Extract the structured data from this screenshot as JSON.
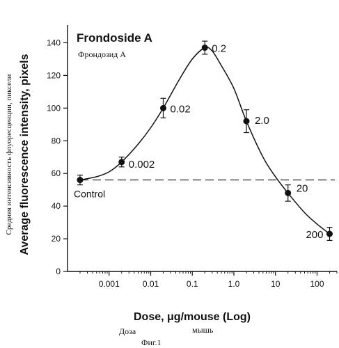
{
  "chart_data": {
    "type": "line",
    "title": "Frondoside A",
    "subtitle": "Фрондозид А",
    "xlabel": "Dose, μg/mouse (Log)",
    "xlabel_ru_1": "Доза",
    "xlabel_ru_2": "мышь",
    "ylabel": "Average fluorescence intensity, pixels",
    "ylabel_ru": "Средняя интенсивность флуоресценции, пиксели",
    "caption": "Фиг.1",
    "x_scale": "log",
    "xlim": [
      0.0001,
      300
    ],
    "ylim": [
      0,
      150
    ],
    "x_ticks": [
      0.001,
      0.01,
      0.1,
      1.0,
      10,
      100
    ],
    "x_tick_labels": [
      "0.001",
      "0.01",
      "0.1",
      "1.0",
      "10",
      "100"
    ],
    "y_ticks": [
      0,
      20,
      40,
      60,
      80,
      100,
      120,
      140
    ],
    "y_tick_labels": [
      "0",
      "20",
      "40",
      "60",
      "80",
      "100",
      "120",
      "140"
    ],
    "grid": false,
    "control": {
      "label": "Control",
      "value": 56,
      "x": 0.0002,
      "error": 3
    },
    "series": [
      {
        "x": [
          0.002,
          0.02,
          0.2,
          2.0,
          20,
          200
        ],
        "y": [
          67,
          100,
          137,
          92,
          48,
          23
        ],
        "errors": [
          3,
          6,
          4,
          7,
          5,
          4
        ],
        "point_labels": [
          "0.002",
          "0.02",
          "0.2",
          "2.0",
          "20",
          "200"
        ]
      }
    ],
    "curve": {
      "x": [
        0.0002,
        0.0005,
        0.001,
        0.002,
        0.005,
        0.01,
        0.02,
        0.05,
        0.1,
        0.2,
        0.3,
        0.5,
        1,
        2,
        5,
        10,
        20,
        50,
        100,
        200
      ],
      "y": [
        56,
        58,
        61,
        67,
        78,
        88,
        100,
        118,
        130,
        137,
        135,
        126,
        112,
        92,
        70,
        58,
        48,
        36,
        29,
        23
      ]
    },
    "colors": {
      "ink": "#111111",
      "background": "#ffffff"
    }
  }
}
